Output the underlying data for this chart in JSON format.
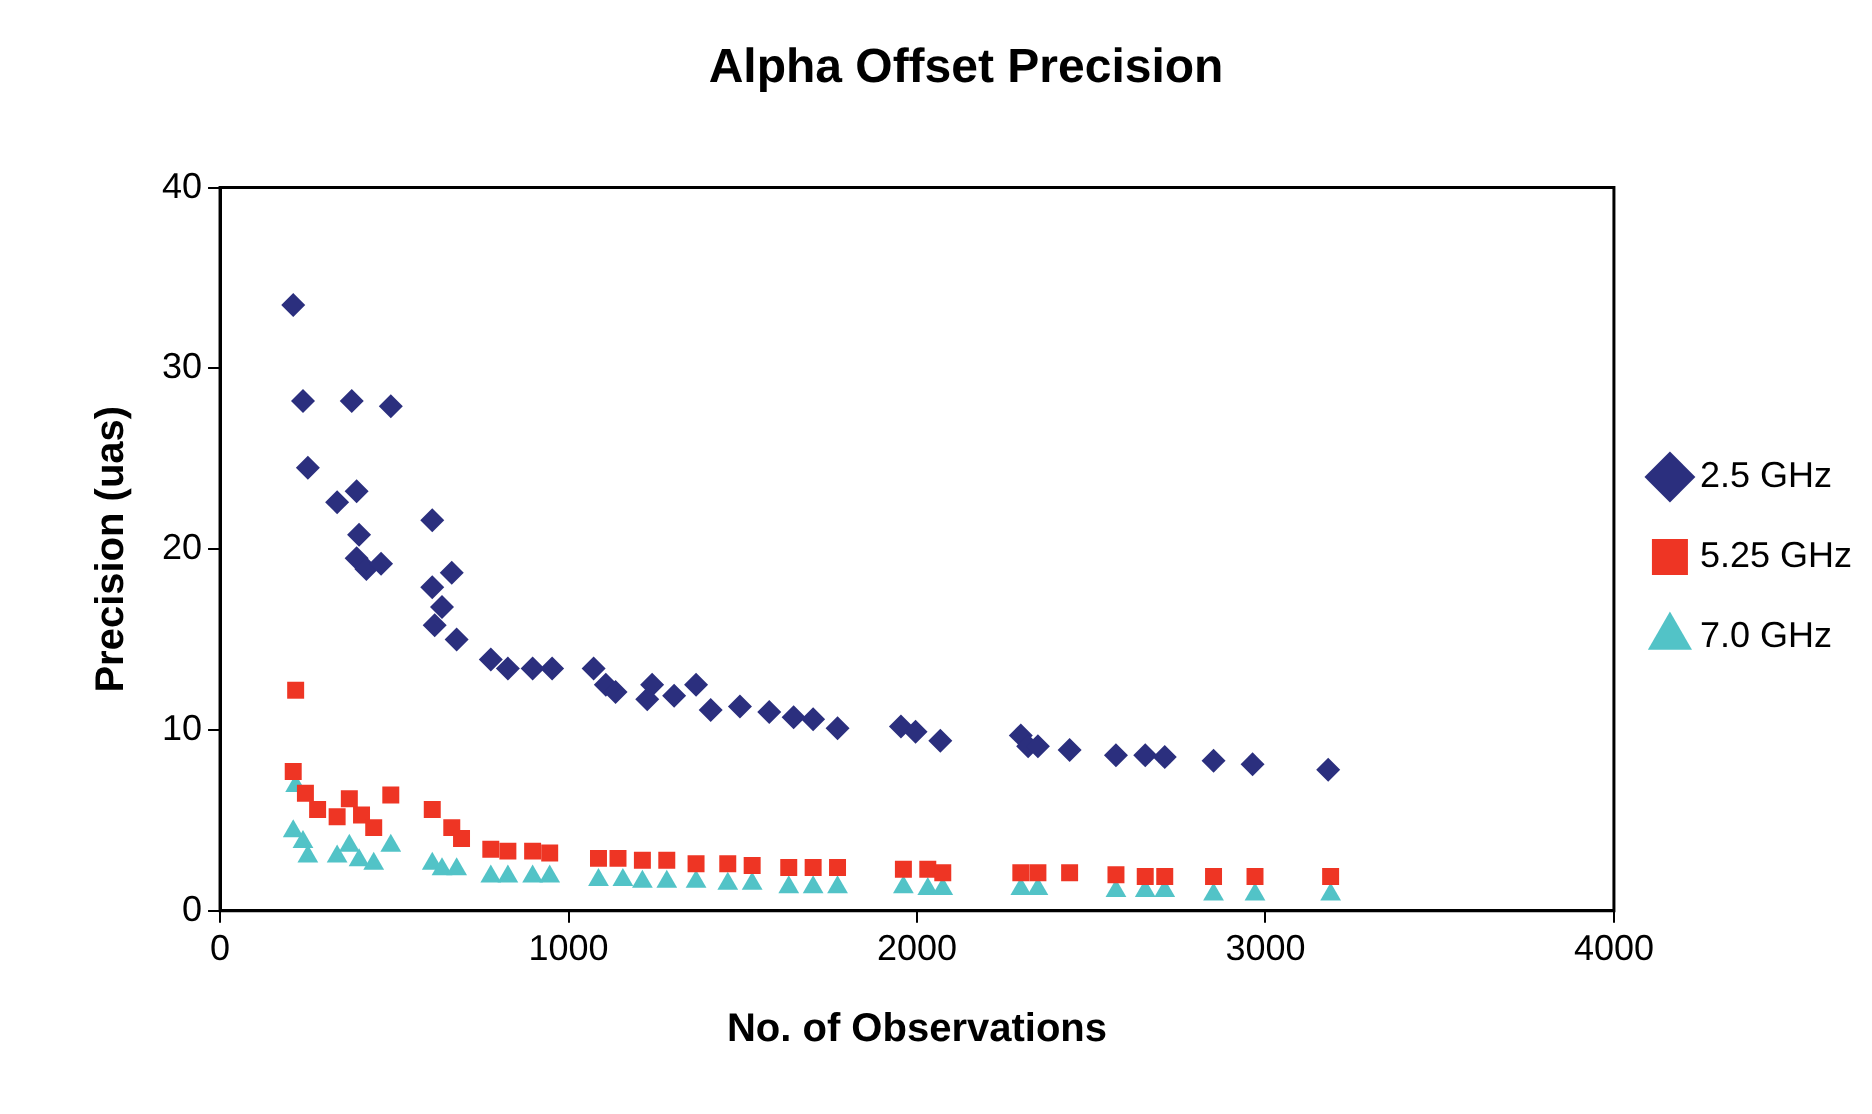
{
  "chart_data": {
    "type": "scatter",
    "title": "Alpha Offset Precision",
    "xlabel": "No. of Observations",
    "ylabel": "Precision (uas)",
    "xlim": [
      0,
      4000
    ],
    "xticks": [
      0,
      1000,
      2000,
      3000,
      4000
    ],
    "ylim": [
      0,
      40
    ],
    "yticks": [
      0,
      10,
      20,
      30,
      40
    ],
    "grid": false,
    "legend": "right",
    "series": [
      {
        "name": "2.5 GHz",
        "color": "#2b2f7e",
        "marker": "diamond",
        "x": [
          210,
          238,
          252,
          378,
          490,
          336,
          392,
          399,
          392,
          420,
          462,
          609,
          609,
          637,
          616,
          665,
          679,
          777,
          826,
          897,
          953,
          1072,
          1107,
          1135,
          1212,
          1240,
          1226,
          1303,
          1366,
          1408,
          1492,
          1576,
          1646,
          1702,
          1772,
          1954,
          1996,
          2067,
          2298,
          2319,
          2347,
          2438,
          2571,
          2655,
          2711,
          2851,
          2963,
          3180
        ],
        "values": [
          33.5,
          28.2,
          24.5,
          28.2,
          27.9,
          22.6,
          23.2,
          20.8,
          19.5,
          18.9,
          19.2,
          21.6,
          17.9,
          16.8,
          15.8,
          18.7,
          15.0,
          13.9,
          13.4,
          13.4,
          13.4,
          13.4,
          12.5,
          12.1,
          null,
          12.5,
          11.7,
          11.9,
          12.5,
          11.1,
          11.3,
          11.0,
          10.7,
          10.6,
          10.1,
          10.2,
          9.9,
          9.4,
          9.7,
          9.1,
          9.1,
          8.9,
          8.6,
          8.6,
          8.5,
          8.3,
          8.1,
          7.8
        ]
      },
      {
        "name": "5.25 GHz",
        "color": "#ee3524",
        "marker": "square",
        "x": [
          210,
          217,
          245,
          280,
          336,
          371,
          406,
          441,
          490,
          609,
          665,
          693,
          777,
          826,
          897,
          946,
          1086,
          1142,
          1212,
          1282,
          1366,
          1457,
          1527,
          1632,
          1702,
          1772,
          1961,
          2031,
          2074,
          2298,
          2347,
          2438,
          2571,
          2655,
          2711,
          2851,
          2970,
          3187
        ],
        "values": [
          7.7,
          12.2,
          6.5,
          5.6,
          5.2,
          6.2,
          5.3,
          4.6,
          6.4,
          5.6,
          4.6,
          4.0,
          3.4,
          3.3,
          3.3,
          3.2,
          2.9,
          2.9,
          2.8,
          2.8,
          2.6,
          2.6,
          2.5,
          2.4,
          2.4,
          2.4,
          2.3,
          2.3,
          2.1,
          2.1,
          2.1,
          2.1,
          2.0,
          1.9,
          1.9,
          1.9,
          1.9,
          1.9
        ]
      },
      {
        "name": "7.0 GHz",
        "color": "#52c3c7",
        "marker": "triangle",
        "x": [
          217,
          210,
          238,
          252,
          336,
          371,
          399,
          441,
          490,
          609,
          637,
          679,
          777,
          826,
          897,
          946,
          1086,
          1156,
          1212,
          1282,
          1366,
          1457,
          1527,
          1632,
          1702,
          1772,
          1961,
          2031,
          2074,
          2298,
          2347,
          2571,
          2655,
          2711,
          2851,
          2970,
          3187
        ],
        "values": [
          6.9,
          4.4,
          3.8,
          3.0,
          3.0,
          3.6,
          2.8,
          2.6,
          3.6,
          2.6,
          2.3,
          2.3,
          1.9,
          1.9,
          1.9,
          1.9,
          1.7,
          1.7,
          1.6,
          1.6,
          1.6,
          1.5,
          1.5,
          1.3,
          1.3,
          1.3,
          1.3,
          1.2,
          1.2,
          1.2,
          1.2,
          1.1,
          1.1,
          1.1,
          0.9,
          0.9,
          0.9
        ]
      }
    ]
  }
}
